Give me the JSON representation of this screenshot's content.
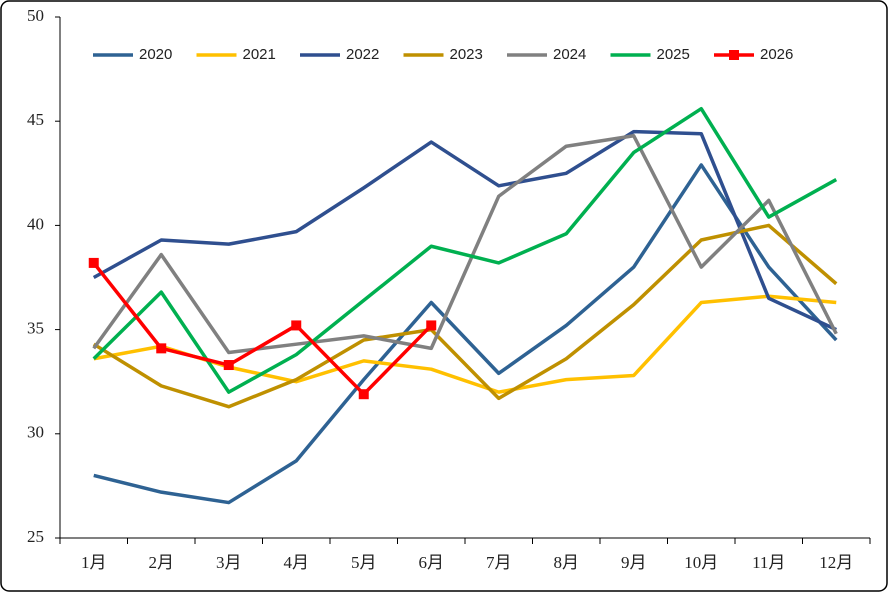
{
  "chart_data": {
    "type": "line",
    "categories": [
      "1月",
      "2月",
      "3月",
      "4月",
      "5月",
      "6月",
      "7月",
      "8月",
      "9月",
      "10月",
      "11月",
      "12月"
    ],
    "series": [
      {
        "name": "2020",
        "color": "#2e6293",
        "values": [
          28.0,
          27.2,
          26.7,
          28.7,
          32.6,
          36.3,
          32.9,
          35.2,
          38.0,
          42.9,
          38.0,
          34.5
        ]
      },
      {
        "name": "2021",
        "color": "#ffc000",
        "values": [
          33.6,
          34.2,
          33.2,
          32.5,
          33.5,
          33.1,
          32.0,
          32.6,
          32.8,
          36.3,
          36.6,
          36.3
        ]
      },
      {
        "name": "2022",
        "color": "#2f4f8f",
        "values": [
          37.5,
          39.3,
          39.1,
          39.7,
          41.8,
          44.0,
          41.9,
          42.5,
          44.5,
          44.4,
          36.5,
          35.0
        ]
      },
      {
        "name": "2023",
        "color": "#bf9000",
        "values": [
          34.3,
          32.3,
          31.3,
          32.6,
          34.5,
          35.0,
          31.7,
          33.6,
          36.2,
          39.3,
          40.0,
          37.2
        ]
      },
      {
        "name": "2024",
        "color": "#808080",
        "values": [
          34.1,
          38.6,
          33.9,
          34.3,
          34.7,
          34.1,
          41.4,
          43.8,
          44.3,
          38.0,
          41.2,
          34.8
        ]
      },
      {
        "name": "2025",
        "color": "#00b050",
        "values": [
          33.6,
          36.8,
          32.0,
          33.8,
          36.4,
          39.0,
          38.2,
          39.6,
          43.5,
          45.6,
          40.4,
          42.2
        ]
      },
      {
        "name": "2026",
        "color": "#ff0000",
        "marker": "square",
        "values": [
          38.2,
          34.1,
          33.3,
          35.2,
          31.9,
          35.2,
          null,
          null,
          null,
          null,
          null,
          null
        ]
      }
    ],
    "ylim": [
      25,
      50
    ],
    "yticks": [
      25,
      30,
      35,
      40,
      45,
      50
    ],
    "grid": false,
    "legend": "top"
  }
}
